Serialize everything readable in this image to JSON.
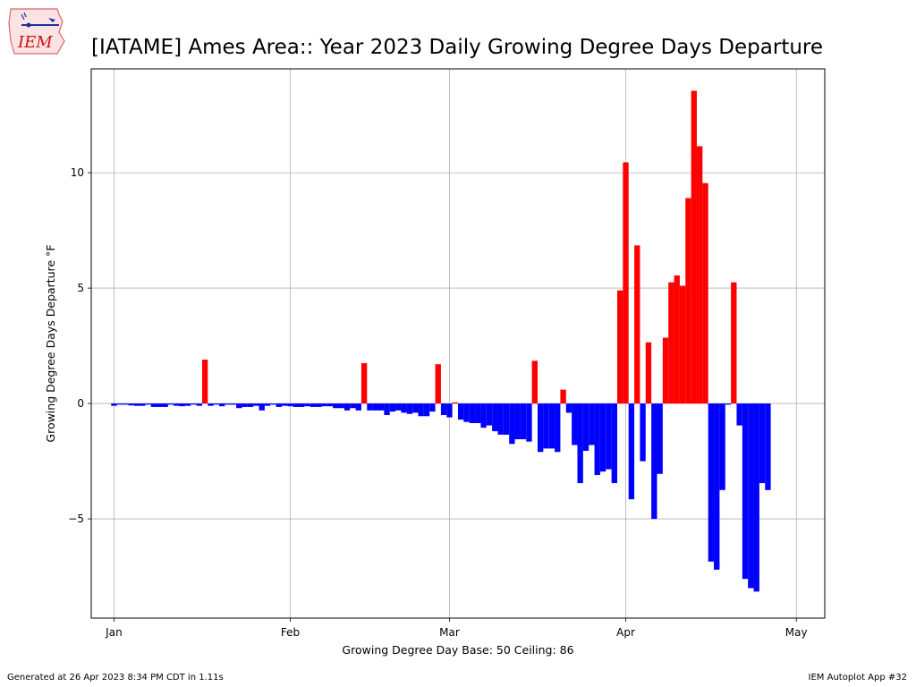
{
  "page": {
    "title": "[IATAME] Ames Area:: Year 2023 Daily Growing Degree Days Departure",
    "footer_left": "Generated at 26 Apr 2023 8:34 PM CDT in 1.11s",
    "footer_right": "IEM Autoplot App #32",
    "logo_text": "IEM"
  },
  "colors": {
    "positive": "#ff0000",
    "negative": "#0000ff",
    "grid": "#b0b0b0"
  },
  "chart_data": {
    "type": "bar",
    "xlabel": "Growing Degree Day Base: 50 Ceiling: 86",
    "ylabel": "Growing Degree Days Departure °F",
    "x_start": "2023-01-01",
    "x_range": [
      "2022-12-28",
      "2023-05-06"
    ],
    "ylim": [
      -9.3,
      14.5
    ],
    "yticks": [
      -5,
      0,
      5,
      10
    ],
    "ytick_labels": [
      "−5",
      "0",
      "5",
      "10"
    ],
    "xticks": [
      {
        "date": "2023-01-01",
        "label": "Jan"
      },
      {
        "date": "2023-02-01",
        "label": "Feb"
      },
      {
        "date": "2023-03-01",
        "label": "Mar"
      },
      {
        "date": "2023-04-01",
        "label": "Apr"
      },
      {
        "date": "2023-05-01",
        "label": "May"
      }
    ],
    "grid": true,
    "values": [
      -0.1,
      -0.05,
      -0.05,
      -0.08,
      -0.1,
      -0.1,
      -0.05,
      -0.15,
      -0.15,
      -0.15,
      -0.05,
      -0.1,
      -0.12,
      -0.1,
      -0.05,
      -0.1,
      1.9,
      -0.1,
      -0.05,
      -0.12,
      -0.05,
      -0.05,
      -0.2,
      -0.15,
      -0.15,
      -0.1,
      -0.3,
      -0.1,
      -0.05,
      -0.15,
      -0.1,
      -0.12,
      -0.15,
      -0.15,
      -0.12,
      -0.15,
      -0.15,
      -0.12,
      -0.12,
      -0.2,
      -0.2,
      -0.3,
      -0.2,
      -0.3,
      1.75,
      -0.3,
      -0.3,
      -0.3,
      -0.5,
      -0.35,
      -0.3,
      -0.4,
      -0.45,
      -0.4,
      -0.55,
      -0.55,
      -0.35,
      1.7,
      -0.5,
      -0.6,
      0.05,
      -0.7,
      -0.8,
      -0.85,
      -0.85,
      -1.05,
      -0.95,
      -1.2,
      -1.35,
      -1.35,
      -1.75,
      -1.55,
      -1.55,
      -1.65,
      1.85,
      -2.1,
      -1.95,
      -1.95,
      -2.1,
      0.6,
      -0.4,
      -1.8,
      -3.45,
      -2.05,
      -1.8,
      -3.1,
      -2.95,
      -2.85,
      -3.45,
      4.9,
      10.45,
      -4.15,
      6.85,
      -2.5,
      2.65,
      -5.0,
      -3.05,
      2.85,
      5.25,
      5.55,
      5.1,
      8.9,
      13.55,
      11.15,
      9.55,
      -6.85,
      -7.2,
      -3.75,
      -0.05,
      5.25,
      -0.95,
      -7.6,
      -8.0,
      -8.15,
      -3.45,
      -3.75
    ]
  }
}
